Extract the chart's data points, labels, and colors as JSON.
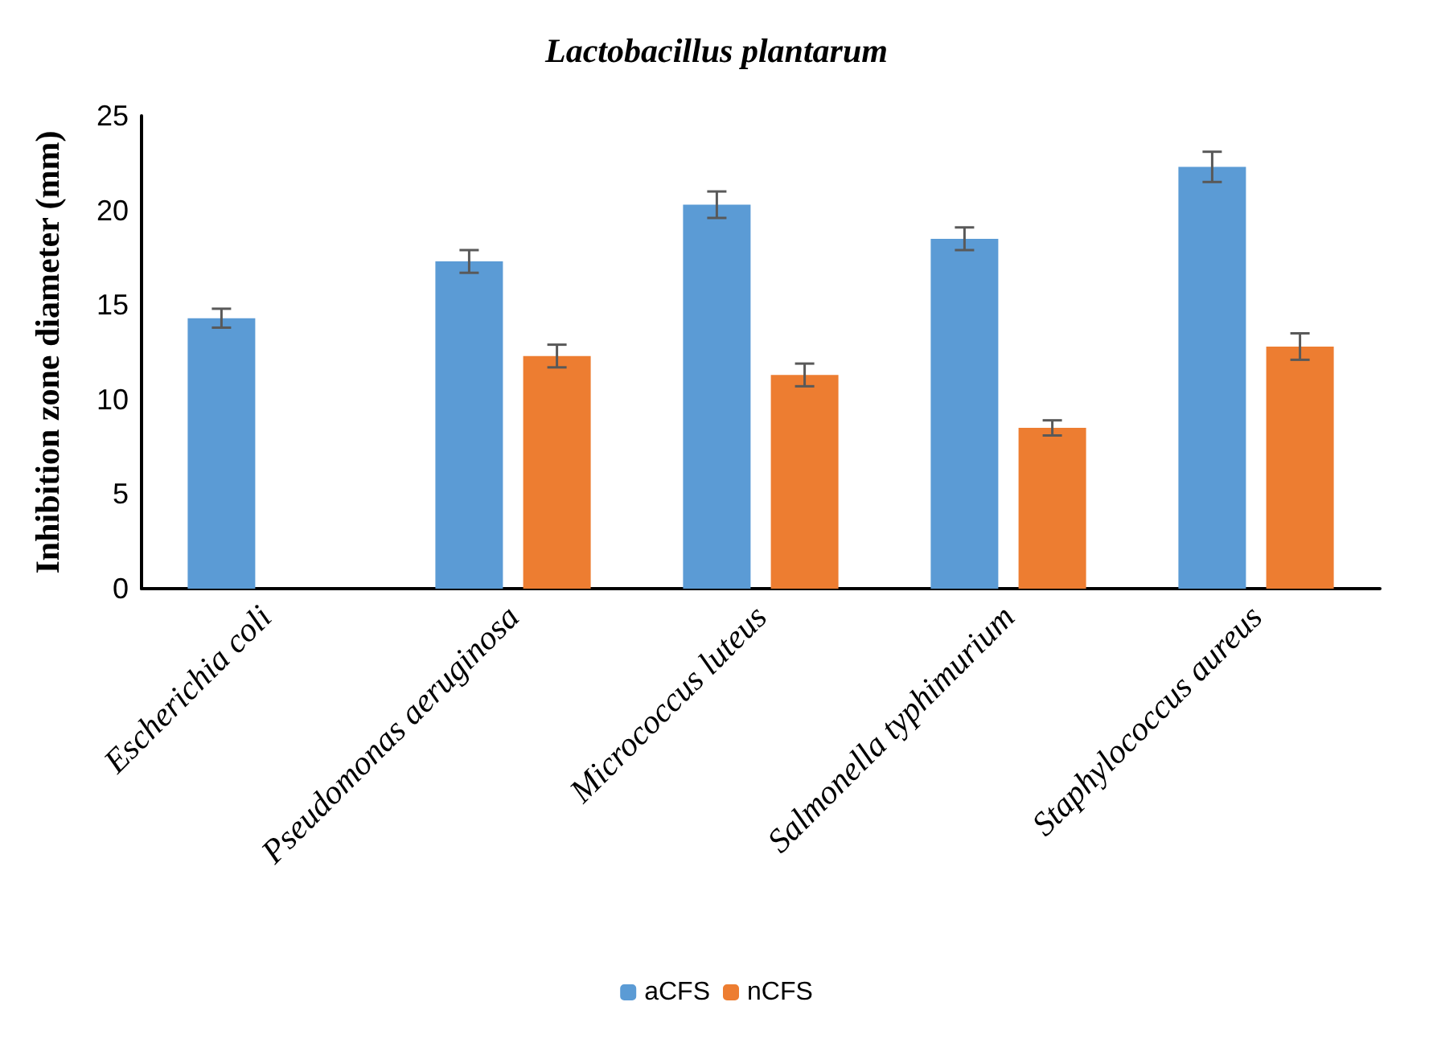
{
  "chart_data": {
    "type": "bar",
    "title": "Lactobacillus plantarum",
    "ylabel": "Inhibition zone diameter (mm)",
    "categories": [
      "Escherichia coli",
      "Pseudomonas aeruginosa",
      "Micrococcus luteus",
      "Salmonella typhimurium",
      "Staphylococcus aureus"
    ],
    "series": [
      {
        "name": "aCFS",
        "color": "#5b9bd5",
        "values": [
          14.3,
          17.3,
          20.3,
          18.5,
          22.3
        ],
        "errors": [
          0.5,
          0.6,
          0.7,
          0.6,
          0.8
        ]
      },
      {
        "name": "nCFS",
        "color": "#ed7d31",
        "values": [
          0,
          12.3,
          11.3,
          8.5,
          12.8
        ],
        "errors": [
          null,
          0.6,
          0.6,
          0.4,
          0.7
        ]
      }
    ],
    "ylim": [
      0,
      25
    ],
    "yticks": [
      0,
      5,
      10,
      15,
      20,
      25
    ],
    "grid": false,
    "legend": "bottom"
  }
}
